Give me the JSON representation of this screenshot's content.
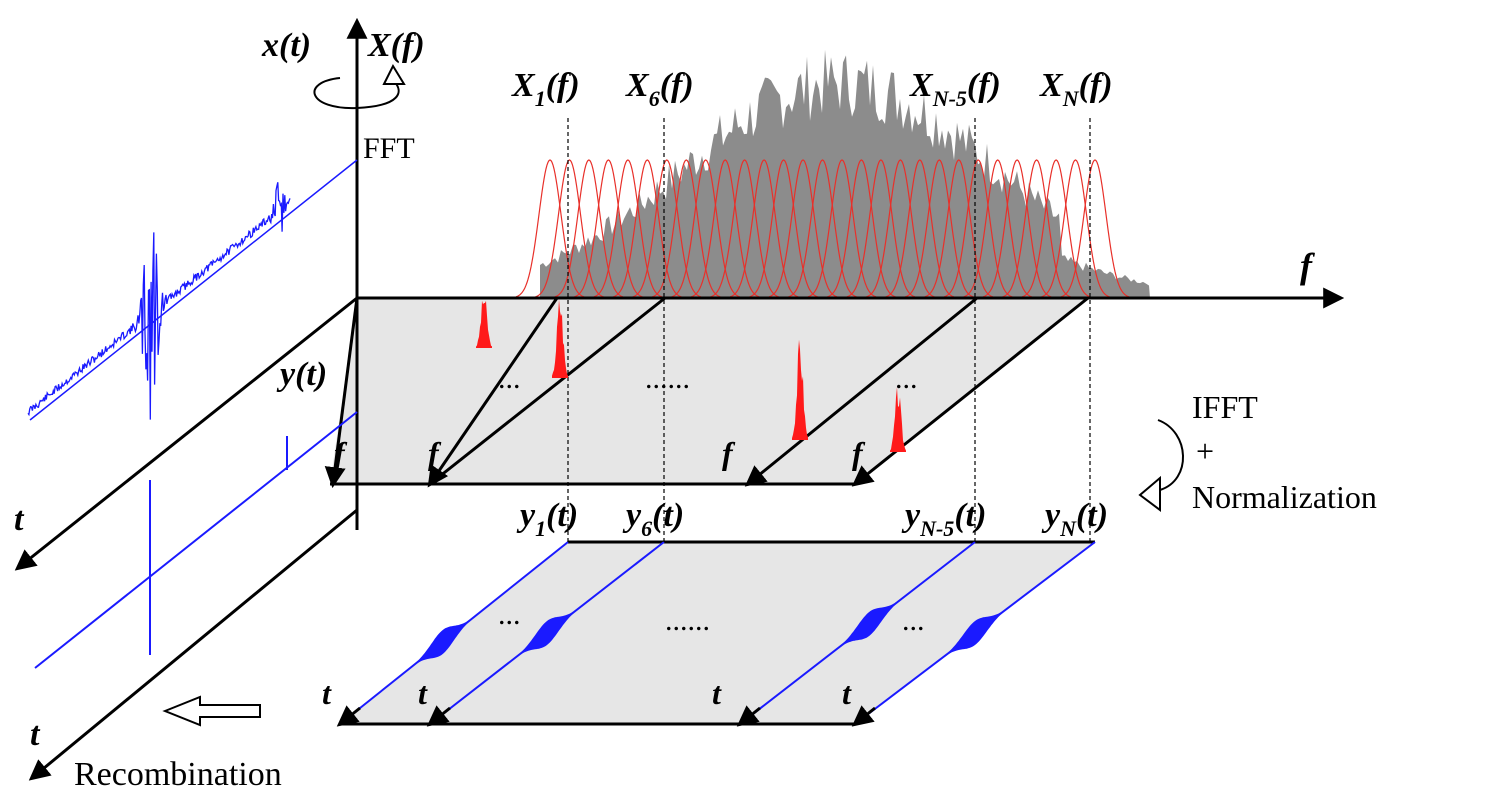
{
  "labels": {
    "xt": "x(t)",
    "Xf": "X(f)",
    "fft": "FFT",
    "yt": "y(t)",
    "f_axis": "f",
    "t_upper": "t",
    "t_lower": "t",
    "recombination": "Recombination",
    "ifft": "IFFT",
    "plus": "+",
    "normalization": "Normalization",
    "ellipsis_short": "...",
    "ellipsis_long": "......",
    "f_plane": "f",
    "t_plane": "t"
  },
  "band_labels": [
    {
      "base": "X",
      "sub": "1",
      "tail": "(f)"
    },
    {
      "base": "X",
      "sub": "6",
      "tail": "(f)"
    },
    {
      "base": "X",
      "sub": "N-5",
      "tail": "(f)"
    },
    {
      "base": "X",
      "sub": "N",
      "tail": "(f)"
    }
  ],
  "component_labels": [
    {
      "base": "y",
      "sub": "1",
      "tail": "(t)"
    },
    {
      "base": "y",
      "sub": "6",
      "tail": "(t)"
    },
    {
      "base": "y",
      "sub": "N-5",
      "tail": "(t)"
    },
    {
      "base": "y",
      "sub": "N",
      "tail": "(t)"
    }
  ],
  "colors": {
    "spectrum": "#8c8c8c",
    "filters": "#e8302a",
    "signal": "#1a1aff",
    "plane": "#e6e6e6",
    "axis": "#000000"
  }
}
